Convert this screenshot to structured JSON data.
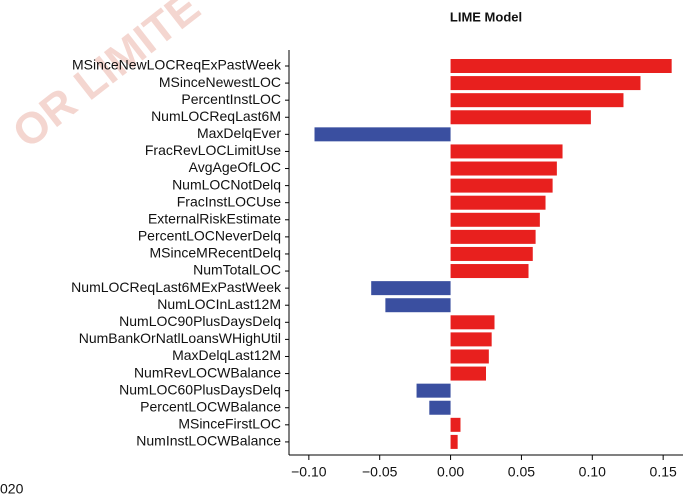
{
  "chart_data": {
    "type": "barh",
    "title": "LIME Model",
    "watermark": "OR LIMITE",
    "side_label": "020",
    "categories": [
      "MSinceNewLOCReqExPastWeek",
      "MSinceNewestLOC",
      "PercentInstLOC",
      "NumLOCReqLast6M",
      "MaxDelqEver",
      "FracRevLOCLimitUse",
      "AvgAgeOfLOC",
      "NumLOCNotDelq",
      "FracInstLOCUse",
      "ExternalRiskEstimate",
      "PercentLOCNeverDelq",
      "MSinceMRecentDelq",
      "NumTotalLOC",
      "NumLOCReqLast6MExPastWeek",
      "NumLOCInLast12M",
      "NumLOC90PlusDaysDelq",
      "NumBankOrNatlLoansWHighUtil",
      "MaxDelqLast12M",
      "NumRevLOCWBalance",
      "NumLOC60PlusDaysDelq",
      "PercentLOCWBalance",
      "MSinceFirstLOC",
      "NumInstLOCWBalance"
    ],
    "values": [
      0.156,
      0.134,
      0.122,
      0.099,
      -0.096,
      0.079,
      0.075,
      0.072,
      0.067,
      0.063,
      0.06,
      0.058,
      0.055,
      -0.056,
      -0.046,
      0.031,
      0.029,
      0.027,
      0.025,
      -0.024,
      -0.015,
      0.007,
      0.005
    ],
    "positive_color": "#e8201e",
    "negative_color": "#3a4fa0",
    "xlim": [
      -0.114,
      0.164
    ],
    "xticks": [
      {
        "value": -0.1,
        "label": "−0.10"
      },
      {
        "value": -0.05,
        "label": "−0.05"
      },
      {
        "value": 0,
        "label": "0.00"
      },
      {
        "value": 0.05,
        "label": "0.05"
      },
      {
        "value": 0.1,
        "label": "0.10"
      },
      {
        "value": 0.15,
        "label": "0.15"
      }
    ],
    "grid": false
  }
}
